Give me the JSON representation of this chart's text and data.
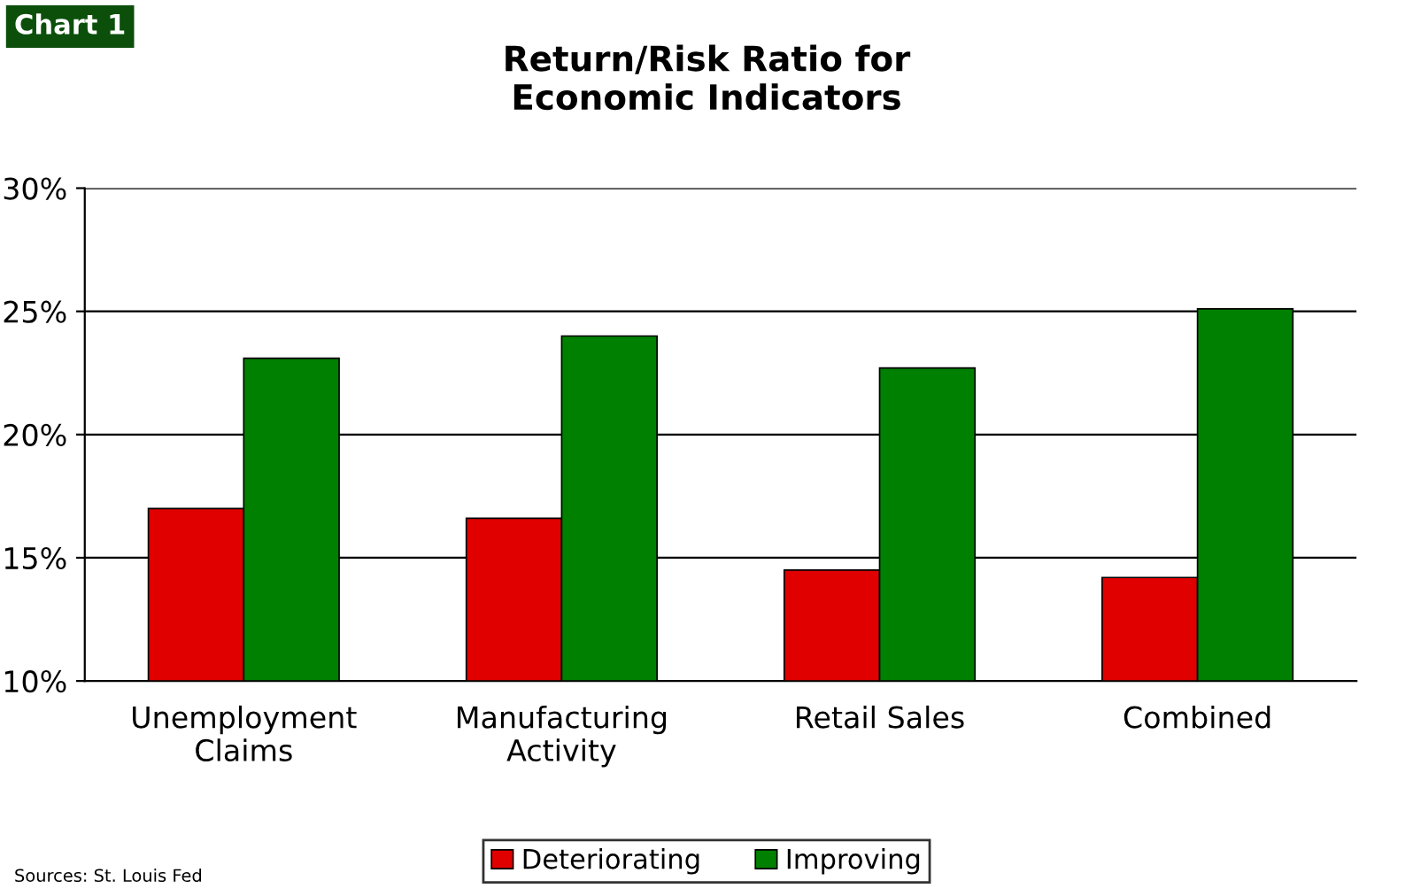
{
  "chart_data": {
    "type": "bar",
    "title": "Return/Risk Ratio for\nEconomic Indicators",
    "categories": [
      "Unemployment\nClaims",
      "Manufacturing\nActivity",
      "Retail Sales",
      "Combined"
    ],
    "series": [
      {
        "name": "Deteriorating",
        "color": "#e00000",
        "values": [
          17.0,
          16.6,
          14.5,
          14.2
        ]
      },
      {
        "name": "Improving",
        "color": "#008000",
        "values": [
          23.1,
          24.0,
          22.7,
          25.1
        ]
      }
    ],
    "ylim": [
      10,
      30
    ],
    "yticks": [
      {
        "value": 10,
        "label": "10%"
      },
      {
        "value": 15,
        "label": "15%"
      },
      {
        "value": 20,
        "label": "20%"
      },
      {
        "value": 25,
        "label": "25%"
      },
      {
        "value": 30,
        "label": "30%"
      }
    ],
    "grid": "y",
    "legend": "bottom",
    "annotations": [
      "Chart 1",
      "Sources: St. Louis Fed"
    ]
  }
}
